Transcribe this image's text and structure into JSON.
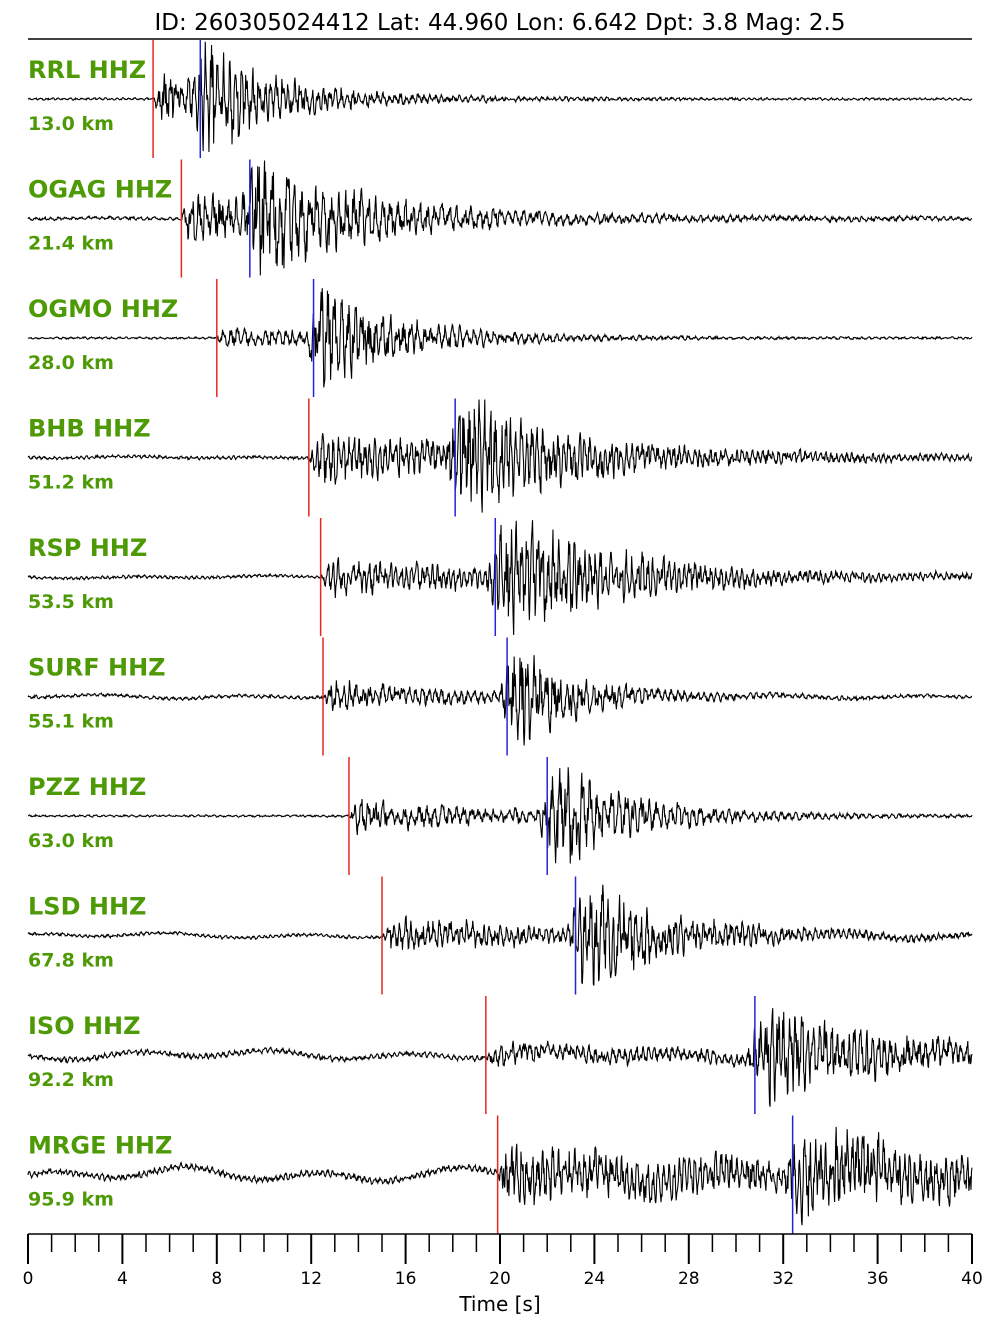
{
  "title": "ID: 260305024412 Lat:  44.960 Lon:   6.642 Dpt:     3.8 Mag:   2.5",
  "chart_data": {
    "type": "line",
    "xlabel": "Time [s]",
    "xlim": [
      0,
      40
    ],
    "major_ticks": [
      0,
      4,
      8,
      12,
      16,
      20,
      24,
      28,
      32,
      36,
      40
    ],
    "minor_tick_step": 1,
    "colors": {
      "station_label": "#4e9a06",
      "p_pick": "#e8251f",
      "s_pick": "#2323d8",
      "trace": "#000000"
    },
    "traces": [
      {
        "station": "RRL HHZ",
        "distance": "13.0 km",
        "p": 5.3,
        "s": 7.3,
        "noise": 0.02,
        "p_amp": 0.45,
        "s_amp": 1.0,
        "decay": 2.2,
        "freq": 4.0,
        "drift": 0.0,
        "seed": 11
      },
      {
        "station": "OGAG HHZ",
        "distance": "21.4 km",
        "p": 6.5,
        "s": 9.4,
        "noise": 0.03,
        "p_amp": 0.45,
        "s_amp": 1.0,
        "decay": 3.5,
        "freq": 3.2,
        "drift": 0.05,
        "seed": 23
      },
      {
        "station": "OGMO HHZ",
        "distance": "28.0 km",
        "p": 8.0,
        "s": 12.1,
        "noise": 0.02,
        "p_amp": 0.18,
        "s_amp": 1.0,
        "decay": 3.0,
        "freq": 3.4,
        "drift": 0.0,
        "seed": 37
      },
      {
        "station": "BHB HHZ",
        "distance": "51.2 km",
        "p": 11.9,
        "s": 18.1,
        "noise": 0.03,
        "p_amp": 0.45,
        "s_amp": 0.95,
        "decay": 4.0,
        "freq": 4.5,
        "drift": 0.08,
        "seed": 41
      },
      {
        "station": "RSP HHZ",
        "distance": "53.5 km",
        "p": 12.4,
        "s": 19.8,
        "noise": 0.03,
        "p_amp": 0.3,
        "s_amp": 0.95,
        "decay": 4.5,
        "freq": 4.5,
        "drift": 0.1,
        "seed": 53
      },
      {
        "station": "SURF HHZ",
        "distance": "55.1 km",
        "p": 12.5,
        "s": 20.3,
        "noise": 0.03,
        "p_amp": 0.25,
        "s_amp": 1.0,
        "decay": 2.5,
        "freq": 3.6,
        "drift": 0.15,
        "seed": 67
      },
      {
        "station": "PZZ HHZ",
        "distance": "63.0 km",
        "p": 13.6,
        "s": 22.0,
        "noise": 0.02,
        "p_amp": 0.3,
        "s_amp": 1.0,
        "decay": 3.0,
        "freq": 3.2,
        "drift": 0.0,
        "seed": 71
      },
      {
        "station": "LSD HHZ",
        "distance": "67.8 km",
        "p": 15.0,
        "s": 23.2,
        "noise": 0.03,
        "p_amp": 0.3,
        "s_amp": 1.0,
        "decay": 3.5,
        "freq": 4.2,
        "drift": 0.2,
        "seed": 83
      },
      {
        "station": "ISO HHZ",
        "distance": "92.2 km",
        "p": 19.4,
        "s": 30.8,
        "noise": 0.05,
        "p_amp": 0.15,
        "s_amp": 0.85,
        "decay": 5.0,
        "freq": 4.0,
        "drift": 0.35,
        "seed": 97
      },
      {
        "station": "MRGE HHZ",
        "distance": "95.9 km",
        "p": 19.9,
        "s": 32.4,
        "noise": 0.06,
        "p_amp": 0.5,
        "s_amp": 0.7,
        "decay": 6.0,
        "freq": 4.5,
        "drift": 0.55,
        "seed": 101
      }
    ]
  }
}
